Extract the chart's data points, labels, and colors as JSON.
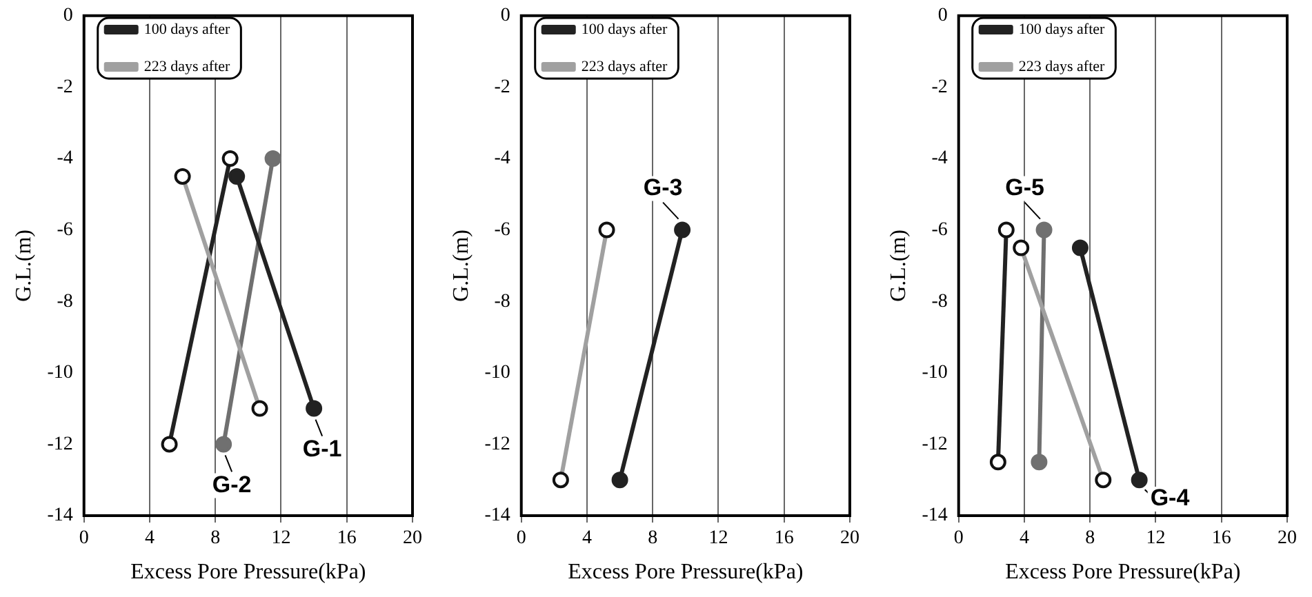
{
  "chart_data": [
    {
      "type": "line",
      "xlabel": "Excess Pore Pressure(kPa)",
      "ylabel": "G.L.(m)",
      "xlim": [
        0,
        20
      ],
      "xticks": [
        0,
        4,
        8,
        12,
        16,
        20
      ],
      "ylim": [
        -14,
        0
      ],
      "yticks": [
        -14,
        -12,
        -10,
        -8,
        -6,
        -4,
        -2,
        0
      ],
      "grid": "x",
      "legend": "top left",
      "marker": "circle",
      "series": [
        {
          "name": "100 days after",
          "color": "#222222",
          "x": [
            9.3,
            14
          ],
          "values": [
            -4.5,
            -11
          ]
        },
        {
          "name": "223 days after",
          "color": "#a0a0a0",
          "x": [
            6,
            10.7
          ],
          "values": [
            -4.5,
            -11
          ]
        },
        {
          "color": "#707070",
          "x": [
            11.5,
            8.5
          ],
          "values": [
            -4,
            -12
          ]
        },
        {
          "color": "#222222",
          "x": [
            8.9,
            5.2
          ],
          "values": [
            -4,
            -12
          ]
        }
      ],
      "annotations": [
        {
          "text": "G-1",
          "x": 14,
          "y": -11
        },
        {
          "text": "G-2",
          "x": 8.5,
          "y": -12
        }
      ]
    },
    {
      "type": "line",
      "xlabel": "Excess Pore Pressure(kPa)",
      "ylabel": "G.L.(m)",
      "xlim": [
        0,
        20
      ],
      "xticks": [
        0,
        4,
        8,
        12,
        16,
        20
      ],
      "ylim": [
        -14,
        0
      ],
      "yticks": [
        -14,
        -12,
        -10,
        -8,
        -6,
        -4,
        -2,
        0
      ],
      "grid": "x",
      "legend": "top left",
      "marker": "circle",
      "series": [
        {
          "name": "100 days after",
          "color": "#222222",
          "x": [
            9.8,
            6
          ],
          "values": [
            -6,
            -13
          ]
        },
        {
          "name": "223 days after",
          "color": "#a0a0a0",
          "x": [
            5.2,
            2.4
          ],
          "values": [
            -6,
            -13
          ]
        }
      ],
      "annotations": [
        {
          "text": "G-3",
          "x": 9.8,
          "y": -6
        }
      ]
    },
    {
      "type": "line",
      "xlabel": "Excess Pore Pressure(kPa)",
      "ylabel": "G.L.(m)",
      "xlim": [
        0,
        20
      ],
      "xticks": [
        0,
        4,
        8,
        12,
        16,
        20
      ],
      "ylim": [
        -14,
        0
      ],
      "yticks": [
        -14,
        -12,
        -10,
        -8,
        -6,
        -4,
        -2,
        0
      ],
      "grid": "x",
      "legend": "top left",
      "marker": "circle",
      "series": [
        {
          "name": "100 days after",
          "color": "#222222",
          "x": [
            7.4,
            11
          ],
          "values": [
            -6.5,
            -13
          ]
        },
        {
          "name": "223 days after",
          "color": "#a0a0a0",
          "x": [
            3.8,
            8.8
          ],
          "values": [
            -6.5,
            -13
          ]
        },
        {
          "color": "#707070",
          "x": [
            5.2,
            4.9
          ],
          "values": [
            -6,
            -12.5
          ]
        },
        {
          "color": "#222222",
          "x": [
            2.9,
            2.4
          ],
          "values": [
            -6,
            -12.5
          ]
        }
      ],
      "annotations": [
        {
          "text": "G-5",
          "x": 5.2,
          "y": -6
        },
        {
          "text": "G-4",
          "x": 11,
          "y": -13
        }
      ]
    }
  ]
}
